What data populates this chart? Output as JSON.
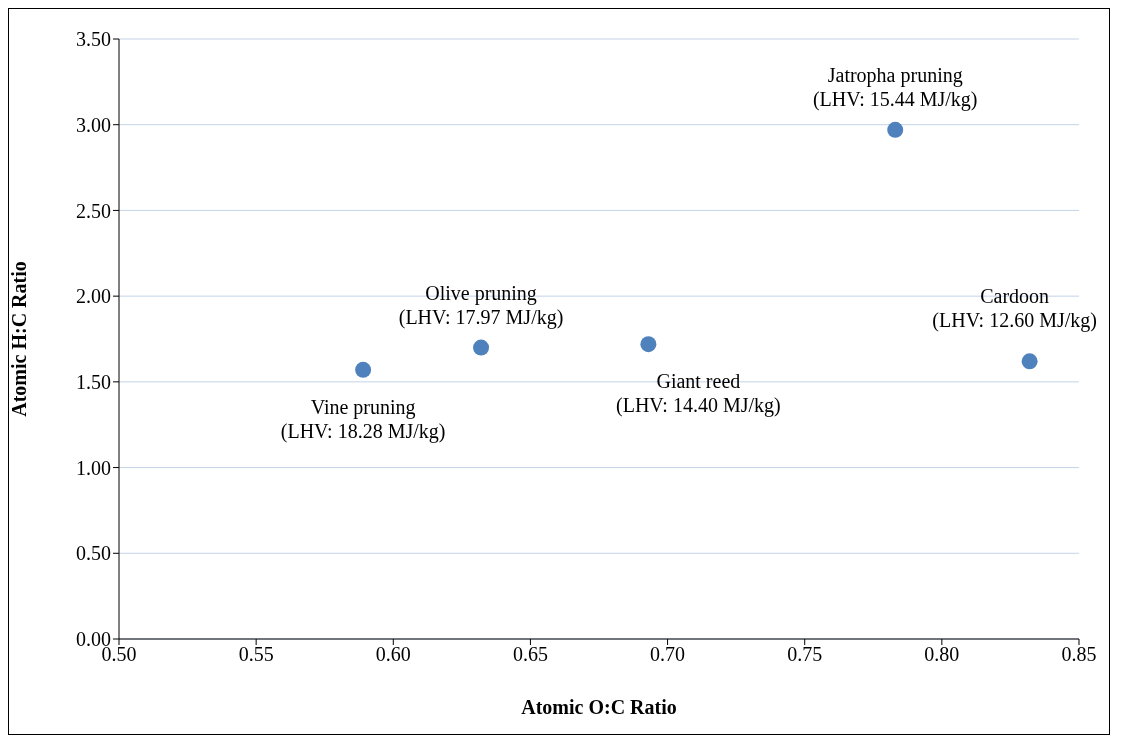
{
  "chart_data": {
    "type": "scatter",
    "xlabel": "Atomic O:C Ratio",
    "ylabel": "Atomic H:C Ratio",
    "x": [
      0.589,
      0.632,
      0.693,
      0.783,
      0.832
    ],
    "series": [
      {
        "color": "#4f81bd",
        "values": [
          1.57,
          1.7,
          1.72,
          2.97,
          1.62
        ]
      }
    ],
    "xlim": [
      0.5,
      0.85
    ],
    "xticks": [
      {
        "value": 0.5,
        "label": "0.50"
      },
      {
        "value": 0.55,
        "label": "0.55"
      },
      {
        "value": 0.6,
        "label": "0.60"
      },
      {
        "value": 0.65,
        "label": "0.65"
      },
      {
        "value": 0.7,
        "label": "0.70"
      },
      {
        "value": 0.75,
        "label": "0.75"
      },
      {
        "value": 0.8,
        "label": "0.80"
      },
      {
        "value": 0.85,
        "label": "0.85"
      }
    ],
    "ylim": [
      0,
      3.5
    ],
    "yticks": [
      {
        "value": 0,
        "label": "0.00"
      },
      {
        "value": 0.5,
        "label": "0.50"
      },
      {
        "value": 1,
        "label": "1.00"
      },
      {
        "value": 1.5,
        "label": "1.50"
      },
      {
        "value": 2,
        "label": "2.00"
      },
      {
        "value": 2.5,
        "label": "2.50"
      },
      {
        "value": 3,
        "label": "3.00"
      },
      {
        "value": 3.5,
        "label": "3.50"
      }
    ],
    "grid": "y",
    "marker": "circle",
    "legend": false,
    "annotations": [
      {
        "text": "Vine pruning\n(LHV: 18.28 MJ/kg)",
        "x": 0.589,
        "y": 1.57
      },
      {
        "text": "Olive pruning\n(LHV: 17.97 MJ/kg)",
        "x": 0.632,
        "y": 1.7
      },
      {
        "text": "Giant reed\n(LHV: 14.40 MJ/kg)",
        "x": 0.693,
        "y": 1.72
      },
      {
        "text": "Jatropha pruning\n(LHV: 15.44 MJ/kg)",
        "x": 0.783,
        "y": 2.97
      },
      {
        "text": "Cardoon\n(LHV: 12.60 MJ/kg)",
        "x": 0.832,
        "y": 1.62
      }
    ]
  }
}
